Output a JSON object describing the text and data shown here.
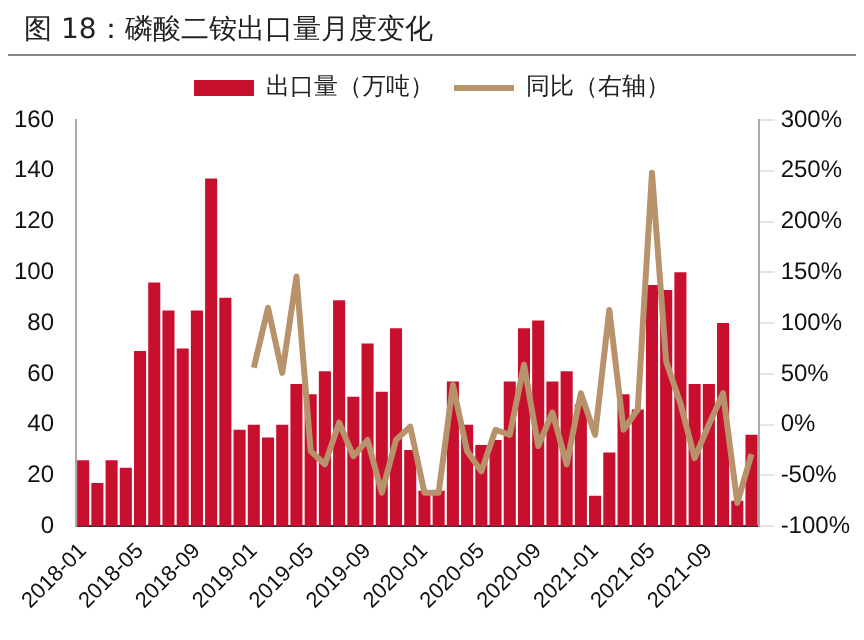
{
  "chart_data": {
    "type": "bar",
    "title": "图 18：磷酸二铵出口量月度变化",
    "categories": [
      "2018-01",
      null,
      null,
      null,
      "2018-05",
      null,
      null,
      null,
      "2018-09",
      null,
      null,
      null,
      "2019-01",
      null,
      null,
      null,
      "2019-05",
      null,
      null,
      null,
      "2019-09",
      null,
      null,
      null,
      "2020-01",
      null,
      null,
      null,
      "2020-05",
      null,
      null,
      null,
      "2020-09",
      null,
      null,
      null,
      "2021-01",
      null,
      null,
      null,
      "2021-05",
      null,
      null,
      null,
      "2021-09",
      null,
      null,
      null
    ],
    "series": [
      {
        "name": "出口量（万吨）",
        "color": "#c8102e",
        "values": [
          26,
          17,
          26,
          23,
          69,
          96,
          85,
          70,
          85,
          137,
          90,
          38,
          40,
          35,
          40,
          56,
          52,
          61,
          89,
          51,
          72,
          53,
          78,
          30,
          14,
          14,
          57,
          40,
          32,
          34,
          57,
          78,
          81,
          57,
          61,
          48,
          12,
          29,
          52,
          46,
          95,
          93,
          100,
          56,
          56,
          80,
          10,
          36
        ]
      },
      {
        "name": "同比（右轴）",
        "type": "line",
        "axis": "y2",
        "color": "#b8926a",
        "values": [
          null,
          null,
          null,
          null,
          null,
          null,
          null,
          null,
          null,
          null,
          null,
          null,
          56,
          115,
          51,
          146,
          -26,
          -39,
          2,
          -31,
          -15,
          -67,
          -15,
          -2,
          -67,
          -67,
          39,
          -26,
          -46,
          -5,
          -10,
          59,
          -21,
          12,
          -39,
          31,
          -10,
          113,
          -5,
          15,
          248,
          62,
          21,
          -33,
          0,
          31,
          -77,
          -29
        ]
      }
    ],
    "ylim": [
      0,
      160
    ],
    "yticks": [
      0,
      20,
      40,
      60,
      80,
      100,
      120,
      140,
      160
    ],
    "y2lim": [
      -100,
      300
    ],
    "y2ticks": [
      {
        "value": -100,
        "label": "-100%"
      },
      {
        "value": -50,
        "label": "-50%"
      },
      {
        "value": 0,
        "label": "0%"
      },
      {
        "value": 50,
        "label": "50%"
      },
      {
        "value": 100,
        "label": "100%"
      },
      {
        "value": 150,
        "label": "150%"
      },
      {
        "value": 200,
        "label": "200%"
      },
      {
        "value": 250,
        "label": "250%"
      },
      {
        "value": 300,
        "label": "300%"
      }
    ],
    "grid": false,
    "legend": "top",
    "marker": "none"
  }
}
